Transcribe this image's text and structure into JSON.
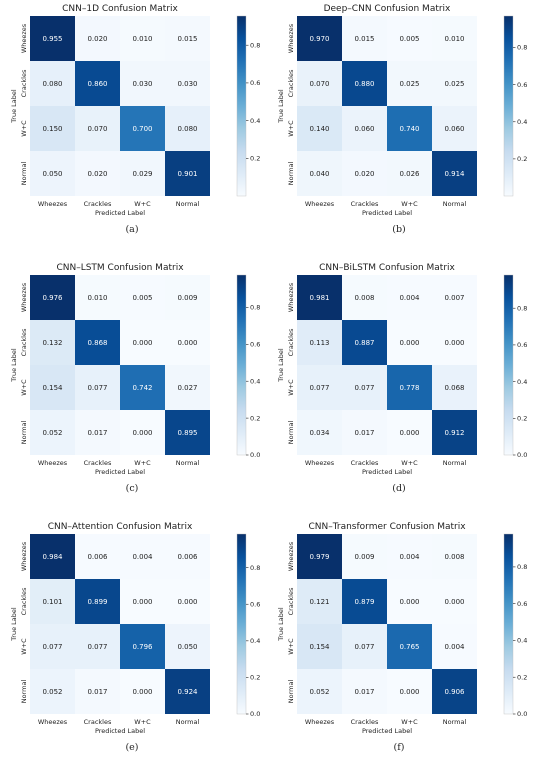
{
  "axis_labels": {
    "x": "Predicted Label",
    "y": "True Label"
  },
  "chart_data": [
    {
      "type": "heatmap",
      "title": "CNN–1D Confusion Matrix",
      "caption": "(a)",
      "x_categories": [
        "Wheezes",
        "Crackles",
        "W+C",
        "Normal"
      ],
      "y_categories": [
        "Wheezes",
        "Crackles",
        "W+C",
        "Normal"
      ],
      "values": [
        [
          0.955,
          0.02,
          0.01,
          0.015
        ],
        [
          0.08,
          0.86,
          0.03,
          0.03
        ],
        [
          0.15,
          0.07,
          0.7,
          0.08
        ],
        [
          0.05,
          0.02,
          0.029,
          0.901
        ]
      ],
      "value_labels": [
        [
          "0.955",
          "0.020",
          "0.010",
          "0.015"
        ],
        [
          "0.080",
          "0.860",
          "0.030",
          "0.030"
        ],
        [
          "0.150",
          "0.070",
          "0.700",
          "0.080"
        ],
        [
          "0.050",
          "0.020",
          "0.029",
          "0.901"
        ]
      ],
      "vmin": 0.0,
      "vmax": 0.955,
      "colorbar_ticks": [
        0.2,
        0.4,
        0.6,
        0.8
      ],
      "colorbar_tick_labels": [
        "0.2",
        "0.4",
        "0.6",
        "0.8"
      ]
    },
    {
      "type": "heatmap",
      "title": "Deep–CNN Confusion Matrix",
      "caption": "(b)",
      "x_categories": [
        "Wheezes",
        "Crackles",
        "W+C",
        "Normal"
      ],
      "y_categories": [
        "Wheezes",
        "Crackles",
        "W+C",
        "Normal"
      ],
      "values": [
        [
          0.97,
          0.015,
          0.005,
          0.01
        ],
        [
          0.07,
          0.88,
          0.025,
          0.025
        ],
        [
          0.14,
          0.06,
          0.74,
          0.06
        ],
        [
          0.04,
          0.02,
          0.026,
          0.914
        ]
      ],
      "value_labels": [
        [
          "0.970",
          "0.015",
          "0.005",
          "0.010"
        ],
        [
          "0.070",
          "0.880",
          "0.025",
          "0.025"
        ],
        [
          "0.140",
          "0.060",
          "0.740",
          "0.060"
        ],
        [
          "0.040",
          "0.020",
          "0.026",
          "0.914"
        ]
      ],
      "vmin": 0.0,
      "vmax": 0.97,
      "colorbar_ticks": [
        0.2,
        0.4,
        0.6,
        0.8
      ],
      "colorbar_tick_labels": [
        "0.2",
        "0.4",
        "0.6",
        "0.8"
      ]
    },
    {
      "type": "heatmap",
      "title": "CNN–LSTM Confusion Matrix",
      "caption": "(c)",
      "x_categories": [
        "Wheezes",
        "Crackles",
        "W+C",
        "Normal"
      ],
      "y_categories": [
        "Wheezes",
        "Crackles",
        "W+C",
        "Normal"
      ],
      "values": [
        [
          0.976,
          0.01,
          0.005,
          0.009
        ],
        [
          0.132,
          0.868,
          0.0,
          0.0
        ],
        [
          0.154,
          0.077,
          0.742,
          0.027
        ],
        [
          0.052,
          0.017,
          0.0,
          0.895
        ]
      ],
      "value_labels": [
        [
          "0.976",
          "0.010",
          "0.005",
          "0.009"
        ],
        [
          "0.132",
          "0.868",
          "0.000",
          "0.000"
        ],
        [
          "0.154",
          "0.077",
          "0.742",
          "0.027"
        ],
        [
          "0.052",
          "0.017",
          "0.000",
          "0.895"
        ]
      ],
      "vmin": 0.0,
      "vmax": 0.976,
      "colorbar_ticks": [
        0.0,
        0.2,
        0.4,
        0.6,
        0.8
      ],
      "colorbar_tick_labels": [
        "0.0",
        "0.2",
        "0.4",
        "0.6",
        "0.8"
      ]
    },
    {
      "type": "heatmap",
      "title": "CNN–BiLSTM Confusion Matrix",
      "caption": "(d)",
      "x_categories": [
        "Wheezes",
        "Crackles",
        "W+C",
        "Normal"
      ],
      "y_categories": [
        "Wheezes",
        "Crackles",
        "W+C",
        "Normal"
      ],
      "values": [
        [
          0.981,
          0.008,
          0.004,
          0.007
        ],
        [
          0.113,
          0.887,
          0.0,
          0.0
        ],
        [
          0.077,
          0.077,
          0.778,
          0.068
        ],
        [
          0.034,
          0.017,
          0.0,
          0.912
        ]
      ],
      "value_labels": [
        [
          "0.981",
          "0.008",
          "0.004",
          "0.007"
        ],
        [
          "0.113",
          "0.887",
          "0.000",
          "0.000"
        ],
        [
          "0.077",
          "0.077",
          "0.778",
          "0.068"
        ],
        [
          "0.034",
          "0.017",
          "0.000",
          "0.912"
        ]
      ],
      "vmin": 0.0,
      "vmax": 0.981,
      "colorbar_ticks": [
        0.0,
        0.2,
        0.4,
        0.6,
        0.8
      ],
      "colorbar_tick_labels": [
        "0.0",
        "0.2",
        "0.4",
        "0.6",
        "0.8"
      ]
    },
    {
      "type": "heatmap",
      "title": "CNN–Attention Confusion Matrix",
      "caption": "(e)",
      "x_categories": [
        "Wheezes",
        "Crackles",
        "W+C",
        "Normal"
      ],
      "y_categories": [
        "Wheezes",
        "Crackles",
        "W+C",
        "Normal"
      ],
      "values": [
        [
          0.984,
          0.006,
          0.004,
          0.006
        ],
        [
          0.101,
          0.899,
          0.0,
          0.0
        ],
        [
          0.077,
          0.077,
          0.796,
          0.05
        ],
        [
          0.052,
          0.017,
          0.0,
          0.924
        ]
      ],
      "value_labels": [
        [
          "0.984",
          "0.006",
          "0.004",
          "0.006"
        ],
        [
          "0.101",
          "0.899",
          "0.000",
          "0.000"
        ],
        [
          "0.077",
          "0.077",
          "0.796",
          "0.050"
        ],
        [
          "0.052",
          "0.017",
          "0.000",
          "0.924"
        ]
      ],
      "vmin": 0.0,
      "vmax": 0.984,
      "colorbar_ticks": [
        0.0,
        0.2,
        0.4,
        0.6,
        0.8
      ],
      "colorbar_tick_labels": [
        "0.0",
        "0.2",
        "0.4",
        "0.6",
        "0.8"
      ]
    },
    {
      "type": "heatmap",
      "title": "CNN–Transformer Confusion Matrix",
      "caption": "(f)",
      "x_categories": [
        "Wheezes",
        "Crackles",
        "W+C",
        "Normal"
      ],
      "y_categories": [
        "Wheezes",
        "Crackles",
        "W+C",
        "Normal"
      ],
      "values": [
        [
          0.979,
          0.009,
          0.004,
          0.008
        ],
        [
          0.121,
          0.879,
          0.0,
          0.0
        ],
        [
          0.154,
          0.077,
          0.765,
          0.004
        ],
        [
          0.052,
          0.017,
          0.0,
          0.906
        ]
      ],
      "value_labels": [
        [
          "0.979",
          "0.009",
          "0.004",
          "0.008"
        ],
        [
          "0.121",
          "0.879",
          "0.000",
          "0.000"
        ],
        [
          "0.154",
          "0.077",
          "0.765",
          "0.004"
        ],
        [
          "0.052",
          "0.017",
          "0.000",
          "0.906"
        ]
      ],
      "vmin": 0.0,
      "vmax": 0.979,
      "colorbar_ticks": [
        0.0,
        0.2,
        0.4,
        0.6,
        0.8
      ],
      "colorbar_tick_labels": [
        "0.0",
        "0.2",
        "0.4",
        "0.6",
        "0.8"
      ]
    }
  ]
}
